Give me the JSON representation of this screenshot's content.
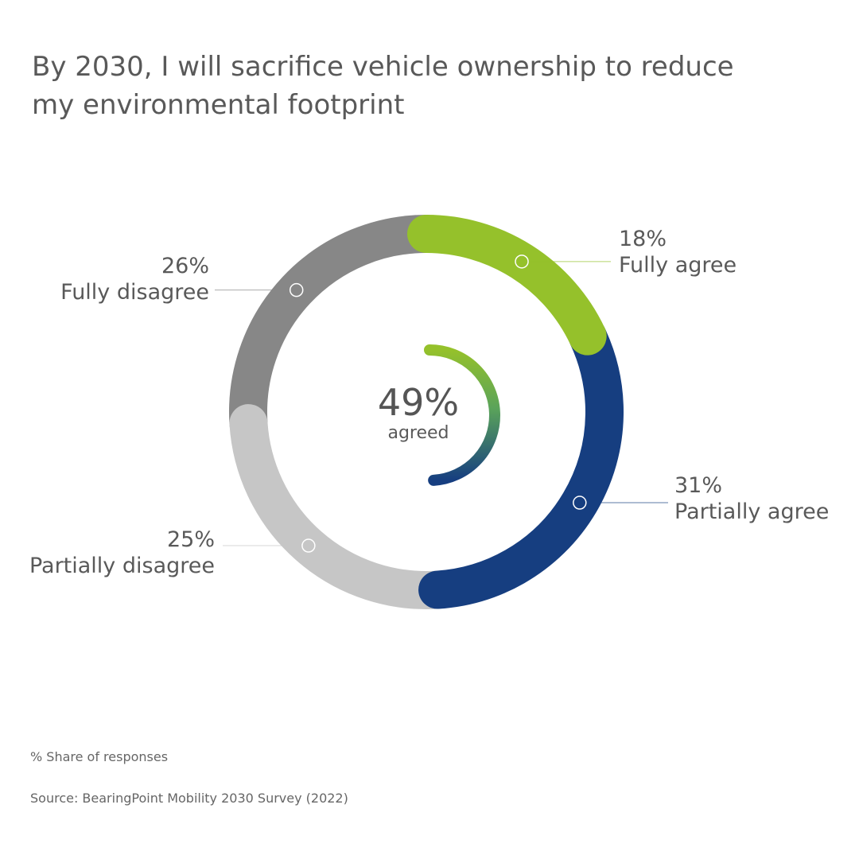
{
  "chart_data": {
    "type": "pie",
    "variant": "donut",
    "title": "By 2030, I will sacrifice vehicle ownership to reduce my environmental footprint",
    "slices": [
      {
        "label": "Fully agree",
        "value": 18,
        "display": "18%",
        "color": "#95c12b"
      },
      {
        "label": "Partially agree",
        "value": 31,
        "display": "31%",
        "color": "#163e80"
      },
      {
        "label": "Partially disagree",
        "value": 25,
        "display": "25%",
        "color": "#c6c6c6"
      },
      {
        "label": "Fully disagree",
        "value": 26,
        "display": "26%",
        "color": "#878787"
      }
    ],
    "center": {
      "value": 49,
      "display": "49%",
      "caption": "agreed"
    },
    "unit_note": "% Share of responses",
    "source": "Source: BearingPoint Mobility 2030 Survey (2022)"
  }
}
